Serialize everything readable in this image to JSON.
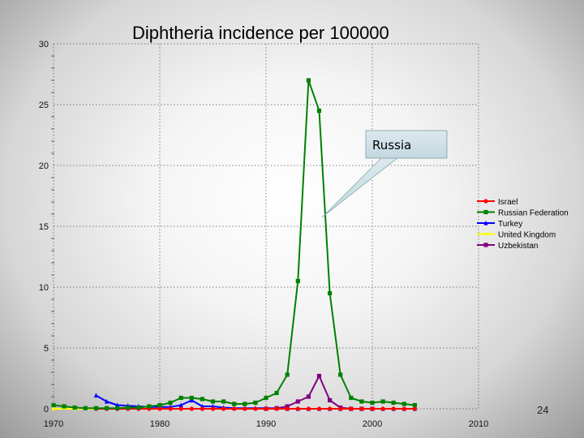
{
  "chart_data": {
    "type": "line",
    "title": "Diphtheria incidence per 100000",
    "xlabel": "",
    "ylabel": "",
    "xlim": [
      1970,
      2010
    ],
    "ylim": [
      0,
      30
    ],
    "x_ticks": [
      "1970",
      "1980",
      "1990",
      "2000",
      "2010"
    ],
    "y_ticks": [
      "0",
      "5",
      "10",
      "15",
      "20",
      "25",
      "30"
    ],
    "series": [
      {
        "name": "Israel",
        "color": "#ff0000",
        "marker": "circle",
        "x": [
          1974,
          1975,
          1976,
          1977,
          1978,
          1979,
          1980,
          1981,
          1982,
          1983,
          1984,
          1985,
          1986,
          1987,
          1988,
          1989,
          1990,
          1991,
          1992,
          1993,
          1994,
          1995,
          1996,
          1997,
          1998,
          1999,
          2000,
          2001,
          2002,
          2003,
          2004
        ],
        "y": [
          0,
          0,
          0,
          0,
          0,
          0,
          0,
          0,
          0,
          0,
          0,
          0,
          0,
          0,
          0,
          0,
          0,
          0,
          0,
          0,
          0,
          0,
          0,
          0,
          0,
          0,
          0,
          0,
          0,
          0,
          0
        ]
      },
      {
        "name": "Russian Federation",
        "color": "#008000",
        "marker": "square",
        "x": [
          1970,
          1971,
          1972,
          1973,
          1974,
          1975,
          1976,
          1977,
          1978,
          1979,
          1980,
          1981,
          1982,
          1983,
          1984,
          1985,
          1986,
          1987,
          1988,
          1989,
          1990,
          1991,
          1992,
          1993,
          1994,
          1995,
          1996,
          1997,
          1998,
          1999,
          2000,
          2001,
          2002,
          2003,
          2004
        ],
        "y": [
          0.3,
          0.2,
          0.1,
          0.05,
          0.05,
          0.05,
          0.05,
          0.1,
          0.1,
          0.2,
          0.3,
          0.5,
          0.9,
          0.9,
          0.8,
          0.6,
          0.6,
          0.4,
          0.4,
          0.5,
          0.9,
          1.3,
          2.8,
          10.5,
          27,
          24.5,
          9.5,
          2.8,
          0.9,
          0.6,
          0.5,
          0.6,
          0.5,
          0.4,
          0.3
        ]
      },
      {
        "name": "Turkey",
        "color": "#0000ff",
        "marker": "triangle",
        "x": [
          1974,
          1975,
          1976,
          1977,
          1978,
          1979,
          1980,
          1981,
          1982,
          1983,
          1984,
          1985,
          1986,
          1987,
          1988,
          1989,
          1990,
          1991,
          1992,
          1993,
          1994,
          1995,
          1996,
          1997,
          1998,
          1999,
          2000,
          2001,
          2002,
          2003,
          2004
        ],
        "y": [
          1.1,
          0.6,
          0.3,
          0.25,
          0.2,
          0.15,
          0.15,
          0.15,
          0.3,
          0.7,
          0.2,
          0.2,
          0.1,
          0.05,
          0.05,
          0.05,
          0.05,
          0.05,
          0,
          0,
          0,
          0,
          0,
          0,
          0,
          0,
          0,
          0,
          0,
          0,
          0
        ]
      },
      {
        "name": "United Kingdom",
        "color": "#ffff00",
        "marker": "diamond",
        "x": [
          1970,
          1972,
          1974,
          1976,
          1978,
          1980,
          1982,
          1984,
          1986,
          1988,
          1990,
          1992,
          1994,
          1996,
          1998,
          2000,
          2002,
          2004
        ],
        "y": [
          0,
          0,
          0,
          0,
          0,
          0,
          0,
          0,
          0,
          0,
          0,
          0,
          0,
          0,
          0,
          0,
          0,
          0
        ]
      },
      {
        "name": "Uzbekistan",
        "color": "#800080",
        "marker": "square",
        "x": [
          1990,
          1991,
          1992,
          1993,
          1994,
          1995,
          1996,
          1997,
          1998,
          1999,
          2000
        ],
        "y": [
          0,
          0.05,
          0.2,
          0.6,
          1.0,
          2.7,
          0.7,
          0.1,
          0,
          0,
          0
        ]
      }
    ],
    "legend_position": "right",
    "annotations": [
      {
        "text": "Russia",
        "target_year": 1994.6,
        "target_value": 16
      }
    ]
  },
  "slide_number": "24"
}
